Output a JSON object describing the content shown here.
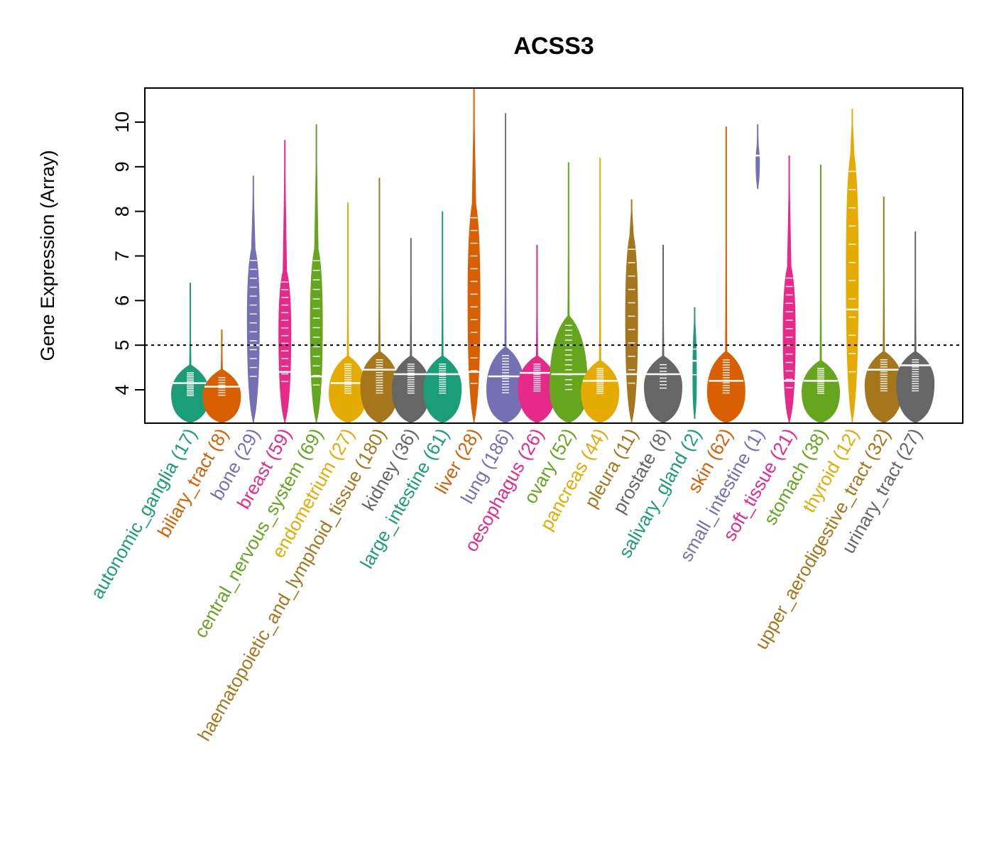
{
  "chart_data": {
    "type": "violin",
    "title": "ACSS3",
    "xlabel": "",
    "ylabel": "Gene Expression (Array)",
    "ylim": [
      3.25,
      10.8
    ],
    "yticks": [
      4,
      5,
      6,
      7,
      8,
      9,
      10
    ],
    "reference_line": {
      "value": 5,
      "style": "dotted",
      "color": "#000000"
    },
    "grid": false,
    "legend": "none",
    "categories": [
      {
        "name": "autonomic_ganglia",
        "n": 17,
        "label": "autonomic_ganglia (17)",
        "color": "#1B9E77",
        "min": 3.25,
        "max": 6.4,
        "median": 4.15,
        "q1": 3.85,
        "q3": 4.4
      },
      {
        "name": "biliary_tract",
        "n": 8,
        "label": "biliary_tract (8)",
        "color": "#D95F02",
        "min": 3.25,
        "max": 5.35,
        "median": 4.07,
        "q1": 3.85,
        "q3": 4.3
      },
      {
        "name": "bone",
        "n": 29,
        "label": "bone (29)",
        "color": "#7570B3",
        "min": 3.25,
        "max": 8.8,
        "median": 5.0,
        "q1": 4.2,
        "q3": 7.0
      },
      {
        "name": "breast",
        "n": 59,
        "label": "breast (59)",
        "color": "#E7298A",
        "min": 3.25,
        "max": 9.6,
        "median": 4.4,
        "q1": 4.1,
        "q3": 6.5
      },
      {
        "name": "central_nervous_system",
        "n": 69,
        "label": "central_nervous_system (69)",
        "color": "#66A61E",
        "min": 3.25,
        "max": 9.95,
        "median": 4.3,
        "q1": 4.0,
        "q3": 7.0
      },
      {
        "name": "endometrium",
        "n": 27,
        "label": "endometrium (27)",
        "color": "#E6AB02",
        "min": 3.25,
        "max": 8.2,
        "median": 4.15,
        "q1": 3.9,
        "q3": 4.6
      },
      {
        "name": "haematopoietic_and_lymphoid_tissue",
        "n": 180,
        "label": "haematopoietic_and_lymphoid_tissue (180)",
        "color": "#A6761D",
        "min": 3.25,
        "max": 8.75,
        "median": 4.45,
        "q1": 3.9,
        "q3": 4.7
      },
      {
        "name": "kidney",
        "n": 36,
        "label": "kidney (36)",
        "color": "#666666",
        "min": 3.25,
        "max": 7.4,
        "median": 4.35,
        "q1": 3.9,
        "q3": 4.6
      },
      {
        "name": "large_intestine",
        "n": 61,
        "label": "large_intestine (61)",
        "color": "#1B9E77",
        "min": 3.25,
        "max": 8.0,
        "median": 4.35,
        "q1": 3.9,
        "q3": 4.6
      },
      {
        "name": "liver",
        "n": 28,
        "label": "liver (28)",
        "color": "#D95F02",
        "min": 3.25,
        "max": 10.8,
        "median": 4.4,
        "q1": 4.0,
        "q3": 8.0
      },
      {
        "name": "lung",
        "n": 186,
        "label": "lung (186)",
        "color": "#7570B3",
        "min": 3.25,
        "max": 10.2,
        "median": 4.3,
        "q1": 3.9,
        "q3": 4.8
      },
      {
        "name": "oesophagus",
        "n": 26,
        "label": "oesophagus (26)",
        "color": "#E7298A",
        "min": 3.25,
        "max": 7.25,
        "median": 4.38,
        "q1": 3.95,
        "q3": 4.6
      },
      {
        "name": "ovary",
        "n": 52,
        "label": "ovary (52)",
        "color": "#66A61E",
        "min": 3.25,
        "max": 9.1,
        "median": 4.35,
        "q1": 3.95,
        "q3": 5.5
      },
      {
        "name": "pancreas",
        "n": 44,
        "label": "pancreas (44)",
        "color": "#E6AB02",
        "min": 3.25,
        "max": 9.2,
        "median": 4.2,
        "q1": 3.9,
        "q3": 4.5
      },
      {
        "name": "pleura",
        "n": 11,
        "label": "pleura (11)",
        "color": "#A6761D",
        "min": 3.25,
        "max": 8.27,
        "median": 4.35,
        "q1": 4.0,
        "q3": 7.3
      },
      {
        "name": "prostate",
        "n": 8,
        "label": "prostate (8)",
        "color": "#666666",
        "min": 3.25,
        "max": 7.25,
        "median": 4.35,
        "q1": 4.0,
        "q3": 4.6
      },
      {
        "name": "salivary_gland",
        "n": 2,
        "label": "salivary_gland (2)",
        "color": "#1B9E77",
        "min": 3.35,
        "max": 5.85,
        "median": 4.65,
        "q1": 4.05,
        "q3": 5.2
      },
      {
        "name": "skin",
        "n": 62,
        "label": "skin (62)",
        "color": "#D95F02",
        "min": 3.25,
        "max": 9.9,
        "median": 4.2,
        "q1": 3.9,
        "q3": 4.7
      },
      {
        "name": "small_intestine",
        "n": 1,
        "label": "small_intestine (1)",
        "color": "#7570B3",
        "min": 8.5,
        "max": 9.95,
        "median": 9.25,
        "q1": 9.25,
        "q3": 9.25
      },
      {
        "name": "soft_tissue",
        "n": 21,
        "label": "soft_tissue (21)",
        "color": "#E7298A",
        "min": 3.25,
        "max": 9.25,
        "median": 4.2,
        "q1": 3.95,
        "q3": 6.6
      },
      {
        "name": "stomach",
        "n": 38,
        "label": "stomach (38)",
        "color": "#66A61E",
        "min": 3.25,
        "max": 9.05,
        "median": 4.2,
        "q1": 3.9,
        "q3": 4.5
      },
      {
        "name": "thyroid",
        "n": 12,
        "label": "thyroid (12)",
        "color": "#E6AB02",
        "min": 3.25,
        "max": 10.3,
        "median": 5.8,
        "q1": 4.2,
        "q3": 9.1
      },
      {
        "name": "upper_aerodigestive_tract",
        "n": 32,
        "label": "upper_aerodigestive_tract (32)",
        "color": "#A6761D",
        "min": 3.25,
        "max": 8.33,
        "median": 4.45,
        "q1": 3.95,
        "q3": 4.7
      },
      {
        "name": "urinary_tract",
        "n": 27,
        "label": "urinary_tract (27)",
        "color": "#666666",
        "min": 3.25,
        "max": 7.55,
        "median": 4.55,
        "q1": 3.95,
        "q3": 4.7
      }
    ]
  }
}
